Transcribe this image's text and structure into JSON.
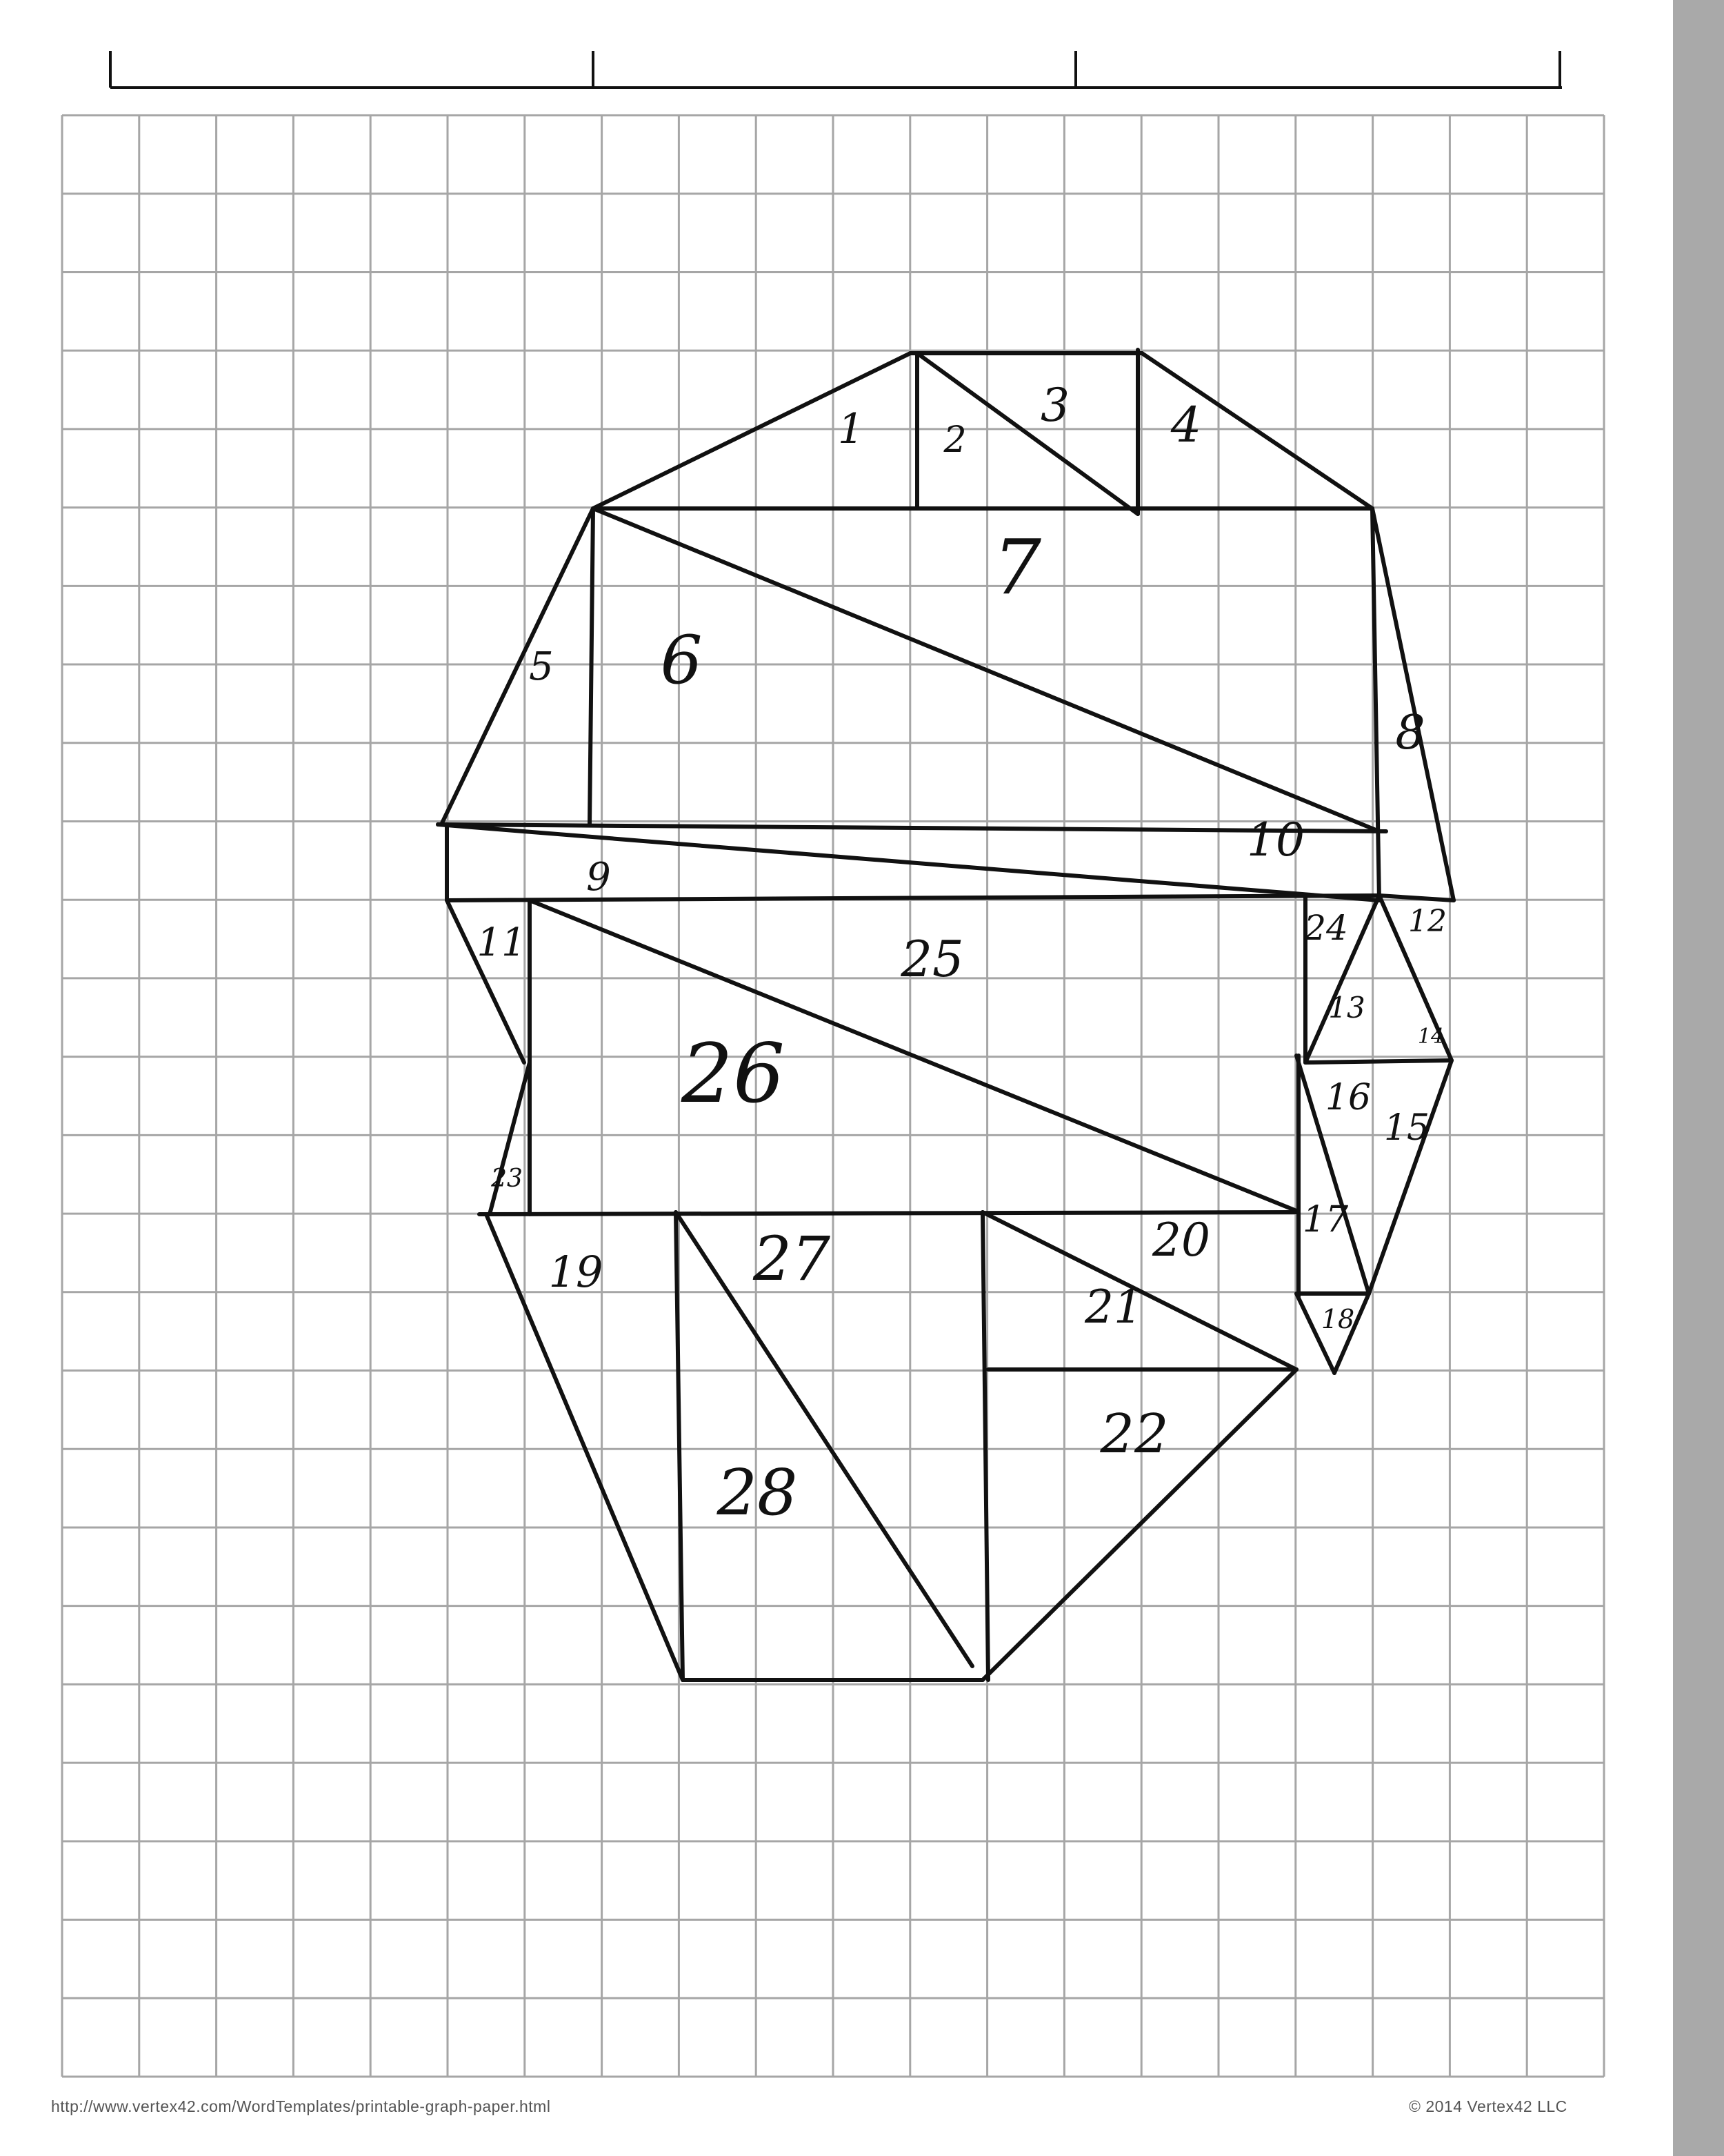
{
  "page": {
    "colors": {
      "paper": "#ffffff",
      "grid": "#a6a6a6",
      "ink": "#111111",
      "margin": "#a9a9a9"
    }
  },
  "diagram": {
    "region_labels": [
      "1",
      "2",
      "3",
      "4",
      "5",
      "6",
      "7",
      "8",
      "9",
      "10",
      "11",
      "12",
      "13",
      "14",
      "15",
      "16",
      "17",
      "18",
      "19",
      "20",
      "21",
      "22",
      "23",
      "24",
      "25",
      "26",
      "27",
      "28"
    ]
  },
  "footer": {
    "url": "http://www.vertex42.com/WordTemplates/printable-graph-paper.html",
    "copyright": "© 2014 Vertex42 LLC"
  }
}
